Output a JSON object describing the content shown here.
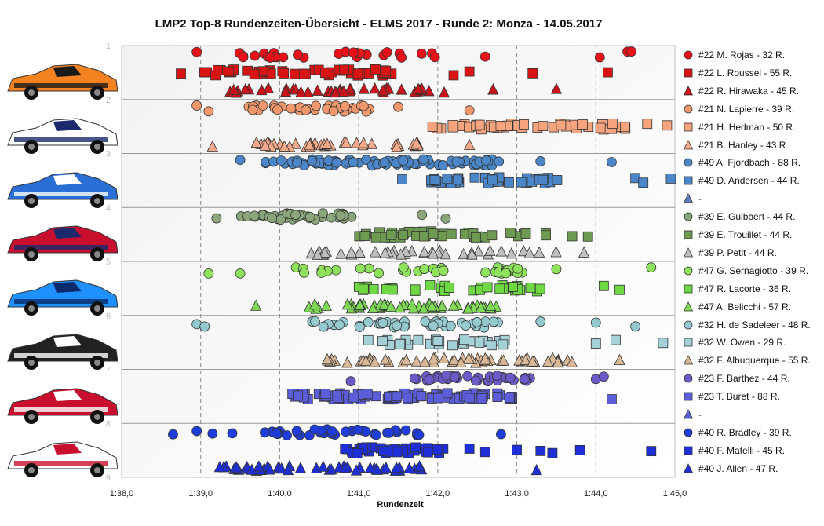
{
  "title": "LMP2  Top-8 Rundenzeiten-Übersicht  - ELMS 2017  - Runde  2: Monza  - 14.05.2017",
  "chart_data": {
    "type": "scatter",
    "title": "LMP2  Top-8 Rundenzeiten-Übersicht  - ELMS 2017  - Runde  2: Monza  - 14.05.2017",
    "xlabel": "Rundenzeit",
    "ylabel": "",
    "xlim": [
      98.0,
      105.0
    ],
    "ylim": [
      9,
      1
    ],
    "x_ticks": [
      "1:38,0",
      "1:39,0",
      "1:40,0",
      "1:41,0",
      "1:42,0",
      "1:43,0",
      "1:44,0",
      "1:45,0"
    ],
    "y_ticks": [
      "1",
      "2",
      "3",
      "4",
      "5",
      "6",
      "7",
      "8",
      "9"
    ],
    "grid": true,
    "legend_position": "right",
    "series": [
      {
        "name": "#22 M. Rojas - 32 R.",
        "marker": "circle",
        "color": "#e8111a",
        "row": 1,
        "lo": 99.4,
        "hi": 102.1,
        "outliers": [
          98.95,
          102.6,
          104.05,
          104.4,
          104.45
        ],
        "count": 32
      },
      {
        "name": "#22 L. Roussel - 55 R.",
        "marker": "square",
        "color": "#d81414",
        "row": 2,
        "lo": 99.0,
        "hi": 101.6,
        "outliers": [
          98.75,
          102.2,
          102.4,
          103.2,
          104.15
        ],
        "count": 55
      },
      {
        "name": "#22 R. Hirawaka - 45 R.",
        "marker": "triangle",
        "color": "#c8141a",
        "row": 3,
        "lo": 99.3,
        "hi": 102.1,
        "outliers": [
          102.7,
          103.5
        ],
        "count": 45
      },
      {
        "name": "#21 N. Lapierre - 39 R.",
        "marker": "circle",
        "color": "#f0976c",
        "row": 4,
        "lo": 99.6,
        "hi": 101.2,
        "outliers": [
          98.95,
          99.1,
          101.5,
          102.4
        ],
        "count": 39
      },
      {
        "name": "#21 H. Hedman - 50 R.",
        "marker": "square",
        "color": "#f5a47d",
        "row": 5,
        "lo": 101.9,
        "hi": 104.4,
        "outliers": [
          104.65,
          104.9
        ],
        "count": 50
      },
      {
        "name": "#21 B. Hanley - 43 R.",
        "marker": "triangle",
        "color": "#f3a98a",
        "row": 6,
        "lo": 99.7,
        "hi": 101.8,
        "outliers": [
          99.15,
          102.4
        ],
        "count": 43
      },
      {
        "name": "#49 A. Fjordbach - 88 R.",
        "marker": "circle",
        "color": "#4a86c8",
        "row": 7,
        "lo": 99.8,
        "hi": 102.9,
        "outliers": [
          99.5,
          103.3,
          104.2
        ],
        "count": 88
      },
      {
        "name": "#49 D. Andersen - 44 R.",
        "marker": "square",
        "color": "#4a86c8",
        "row": 8,
        "lo": 101.9,
        "hi": 103.6,
        "outliers": [
          101.55,
          104.5,
          104.6,
          104.95
        ],
        "count": 44
      },
      {
        "name": "-",
        "marker": "triangle",
        "color": "#5b7fc1",
        "row": 9,
        "lo": 0,
        "hi": 0,
        "outliers": [],
        "count": 0
      },
      {
        "name": "#39 E. Guibbert - 44 R.",
        "marker": "circle",
        "color": "#8aa67a",
        "row": 10,
        "lo": 99.5,
        "hi": 100.95,
        "outliers": [
          99.2,
          101.8,
          102.1
        ],
        "count": 44
      },
      {
        "name": "#39 E. Trouillet - 44 R.",
        "marker": "square",
        "color": "#6f9a52",
        "row": 11,
        "lo": 101.0,
        "hi": 103.4,
        "outliers": [
          103.7,
          103.9
        ],
        "count": 44
      },
      {
        "name": "#39 P. Petit - 44 R.",
        "marker": "triangle",
        "color": "#bfbfbf",
        "row": 12,
        "lo": 100.4,
        "hi": 103.5,
        "outliers": [
          103.85
        ],
        "count": 44
      },
      {
        "name": "#47 G. Sernagiotto - 39 R.",
        "marker": "circle",
        "color": "#8ee25c",
        "row": 13,
        "lo": 100.1,
        "hi": 103.1,
        "outliers": [
          99.1,
          99.5,
          103.5,
          104.7
        ],
        "count": 39
      },
      {
        "name": "#47 R. Lacorte - 36 R.",
        "marker": "square",
        "color": "#6fd944",
        "row": 14,
        "lo": 101.0,
        "hi": 103.3,
        "outliers": [
          104.1,
          104.3
        ],
        "count": 36
      },
      {
        "name": "#47 A. Belicchi - 57 R.",
        "marker": "triangle",
        "color": "#7ed957",
        "row": 15,
        "lo": 100.3,
        "hi": 102.8,
        "outliers": [
          99.7
        ],
        "count": 57
      },
      {
        "name": "#32 H. de Sadeleer - 48 R.",
        "marker": "circle",
        "color": "#95c9d0",
        "row": 16,
        "lo": 100.4,
        "hi": 102.8,
        "outliers": [
          98.95,
          99.05,
          103.3,
          104.0,
          104.5
        ],
        "count": 48
      },
      {
        "name": "#32 W. Owen - 29 R.",
        "marker": "square",
        "color": "#a4d0d8",
        "row": 17,
        "lo": 101.1,
        "hi": 102.9,
        "outliers": [
          104.0,
          104.25,
          104.85
        ],
        "count": 29
      },
      {
        "name": "#32 F. Albuquerque - 55 R.",
        "marker": "triangle",
        "color": "#d9b897",
        "row": 18,
        "lo": 100.6,
        "hi": 103.7,
        "outliers": [
          104.3
        ],
        "count": 55
      },
      {
        "name": "#23 F. Barthez - 44 R.",
        "marker": "circle",
        "color": "#6b5bc8",
        "row": 19,
        "lo": 101.7,
        "hi": 103.2,
        "outliers": [
          100.9,
          104.0,
          104.1
        ],
        "count": 44
      },
      {
        "name": "#23 T. Buret - 88 R.",
        "marker": "square",
        "color": "#5b5ed8",
        "row": 20,
        "lo": 100.1,
        "hi": 102.95,
        "outliers": [
          104.2
        ],
        "count": 88
      },
      {
        "name": "-",
        "marker": "triangle",
        "color": "#5b5ed8",
        "row": 21,
        "lo": 0,
        "hi": 0,
        "outliers": [],
        "count": 0
      },
      {
        "name": "#40 R. Bradley - 39 R.",
        "marker": "circle",
        "color": "#1f3ddb",
        "row": 22,
        "lo": 99.8,
        "hi": 101.8,
        "outliers": [
          98.65,
          98.95,
          99.15,
          99.4,
          102.8
        ],
        "count": 39
      },
      {
        "name": "#40 F. Matelli - 45 R.",
        "marker": "square",
        "color": "#1f2fd8",
        "row": 23,
        "lo": 100.8,
        "hi": 102.1,
        "outliers": [
          102.4,
          102.6,
          103.0,
          103.3,
          103.45,
          103.8,
          104.7
        ],
        "count": 45
      },
      {
        "name": "#40 J. Allen - 47 R.",
        "marker": "triangle",
        "color": "#1f2fd8",
        "row": 24,
        "lo": 99.2,
        "hi": 102.2,
        "outliers": [
          103.25
        ],
        "count": 47
      }
    ]
  }
}
